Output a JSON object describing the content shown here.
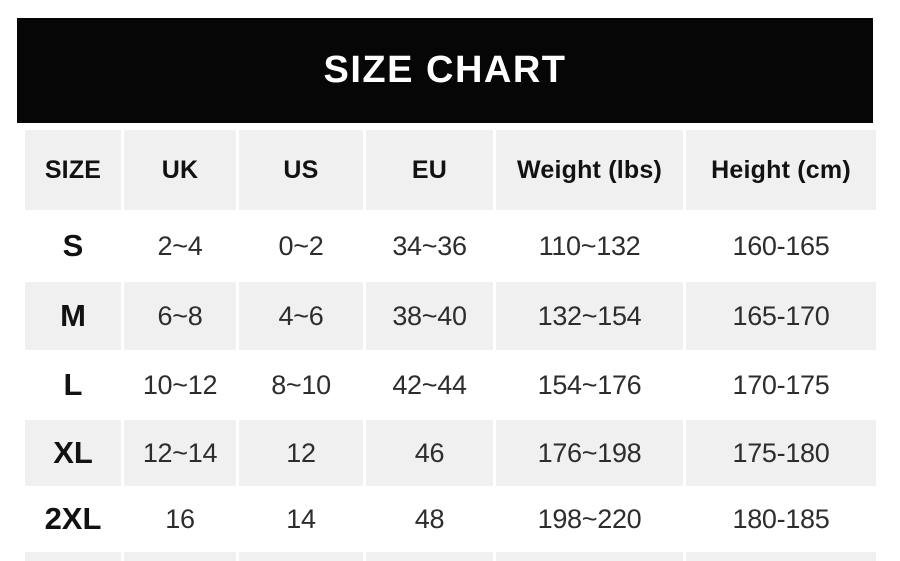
{
  "chart_data": {
    "type": "table",
    "title": "SIZE CHART",
    "columns": [
      "SIZE",
      "UK",
      "US",
      "EU",
      "Weight (lbs)",
      "Height (cm)"
    ],
    "rows": [
      [
        "S",
        "2~4",
        "0~2",
        "34~36",
        "110~132",
        "160-165"
      ],
      [
        "M",
        "6~8",
        "4~6",
        "38~40",
        "132~154",
        "165-170"
      ],
      [
        "L",
        "10~12",
        "8~10",
        "42~44",
        "154~176",
        "170-175"
      ],
      [
        "XL",
        "12~14",
        "12",
        "46",
        "176~198",
        "175-180"
      ],
      [
        "2XL",
        "16",
        "14",
        "48",
        "198~220",
        "180-185"
      ]
    ],
    "layout_hints": {
      "header_row_shaded": true,
      "alternating_shaded_rows": [
        "header",
        "M",
        "XL"
      ],
      "partial_next_row_visible_at_bottom": true
    }
  },
  "colors": {
    "banner_background": "#060606",
    "banner_text": "#ffffff",
    "shaded_cell": "#f0f0f0",
    "unshaded_cell": "#ffffff",
    "header_text": "#121212",
    "value_text": "#2d2d2d"
  }
}
